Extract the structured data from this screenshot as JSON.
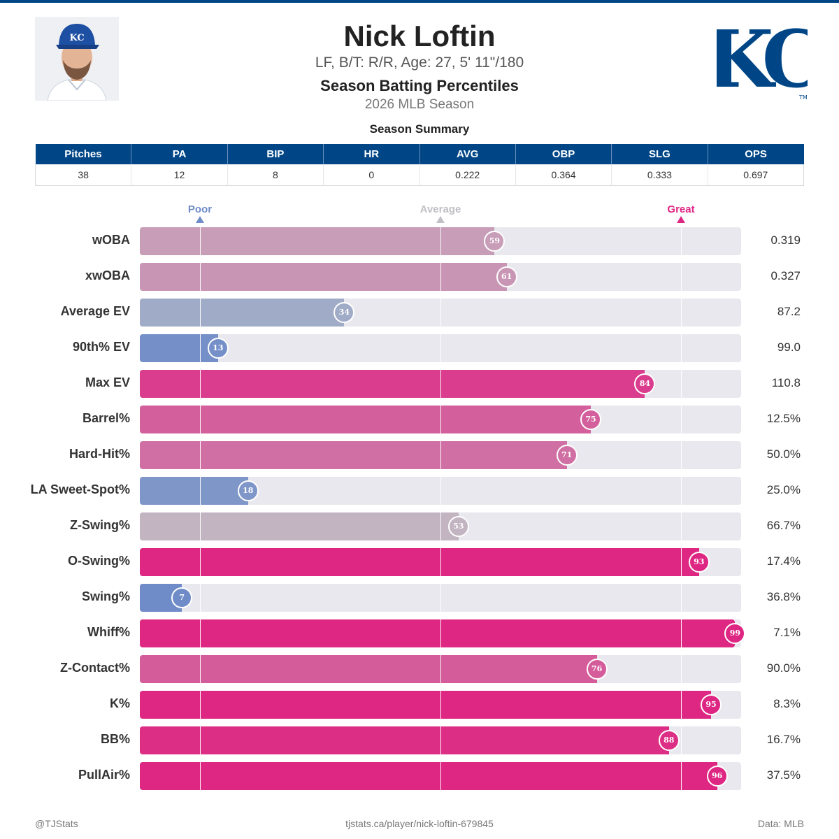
{
  "header": {
    "name": "Nick Loftin",
    "bio": "LF, B/T: R/R, Age: 27, 5' 11\"/180",
    "subtitle": "Season Batting Percentiles",
    "season": "2026 MLB Season",
    "logo_text": "KC",
    "logo_mark": "TM"
  },
  "summary": {
    "title": "Season Summary",
    "columns": [
      "Pitches",
      "PA",
      "BIP",
      "HR",
      "AVG",
      "OBP",
      "SLG",
      "OPS"
    ],
    "values": [
      "38",
      "12",
      "8",
      "0",
      "0.222",
      "0.364",
      "0.333",
      "0.697"
    ]
  },
  "scale": {
    "poor": "Poor",
    "average": "Average",
    "great": "Great"
  },
  "colors": {
    "brand": "#004687",
    "poor": "#6f8cc8",
    "average": "#c0c0c6",
    "great": "#de2683",
    "track": "#e8e8ee"
  },
  "chart_data": {
    "type": "bar",
    "orientation": "horizontal",
    "xlim": [
      0,
      100
    ],
    "reference_lines": [
      10,
      50,
      90
    ],
    "categories": [
      "wOBA",
      "xwOBA",
      "Average EV",
      "90th% EV",
      "Max EV",
      "Barrel%",
      "Hard-Hit%",
      "LA Sweet-Spot%",
      "Z-Swing%",
      "O-Swing%",
      "Swing%",
      "Whiff%",
      "Z-Contact%",
      "K%",
      "BB%",
      "PullAir%"
    ],
    "values": [
      59,
      61,
      34,
      13,
      84,
      75,
      71,
      18,
      53,
      93,
      7,
      99,
      76,
      95,
      88,
      96
    ],
    "stat_values": [
      "0.319",
      "0.327",
      "87.2",
      "99.0",
      "110.8",
      "12.5%",
      "50.0%",
      "25.0%",
      "66.7%",
      "17.4%",
      "36.8%",
      "7.1%",
      "90.0%",
      "8.3%",
      "16.7%",
      "37.5%"
    ],
    "bubble_labels": [
      "59",
      "61",
      "34",
      "13",
      "84",
      "75",
      "71",
      "18",
      "53",
      "93",
      "7",
      "99",
      "76",
      "95",
      "88",
      "96"
    ]
  },
  "footer": {
    "left": "@TJStats",
    "center": "tjstats.ca/player/nick-loftin-679845",
    "right": "Data: MLB"
  }
}
